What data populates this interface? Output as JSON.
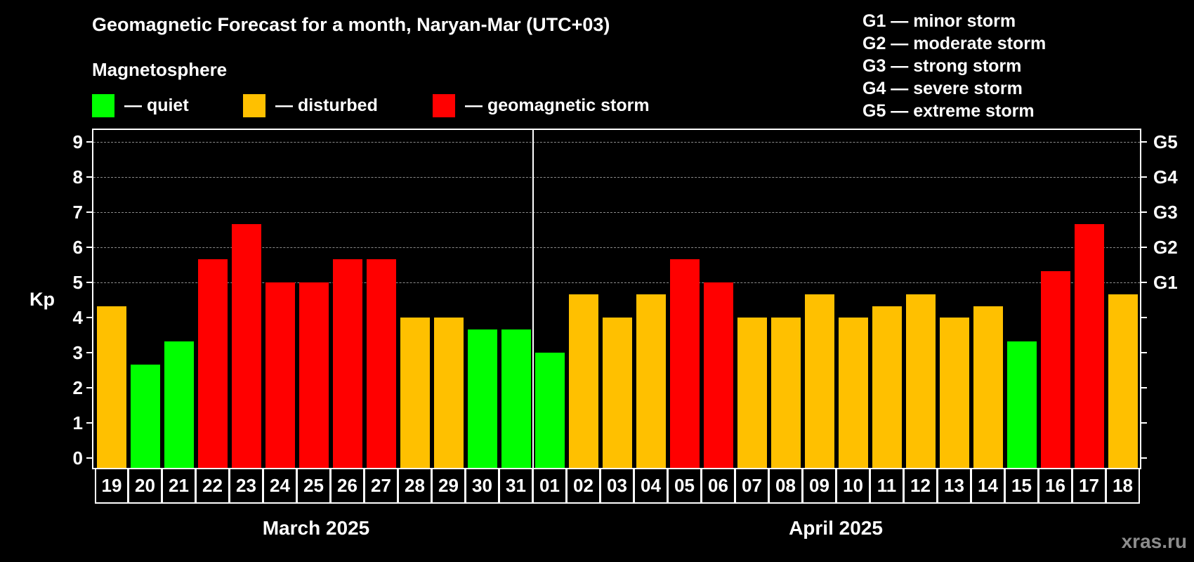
{
  "header": {
    "title": "Geomagnetic Forecast for a month, Naryan-Mar (UTC+03)",
    "subtitle": "Magnetosphere"
  },
  "legend": [
    {
      "label": "— quiet",
      "color": "#00ff00"
    },
    {
      "label": "— disturbed",
      "color": "#ffc000"
    },
    {
      "label": "— geomagnetic storm",
      "color": "#ff0000"
    }
  ],
  "g_scale_legend": [
    "G1 — minor storm",
    "G2 — moderate storm",
    "G3 — strong storm",
    "G4 — severe storm",
    "G5 — extreme storm"
  ],
  "axis": {
    "y_label": "Kp",
    "y_ticks": [
      "0",
      "1",
      "2",
      "3",
      "4",
      "5",
      "6",
      "7",
      "8",
      "9"
    ],
    "g_ticks": [
      {
        "label": "G1",
        "kp": 5
      },
      {
        "label": "G2",
        "kp": 6
      },
      {
        "label": "G3",
        "kp": 7
      },
      {
        "label": "G4",
        "kp": 8
      },
      {
        "label": "G5",
        "kp": 9
      }
    ],
    "months": [
      "March 2025",
      "April 2025"
    ]
  },
  "watermark": "xras.ru",
  "colors": {
    "quiet": "#00ff00",
    "disturbed": "#ffc000",
    "storm": "#ff0000"
  },
  "chart_data": {
    "type": "bar",
    "title": "Geomagnetic Forecast for a month, Naryan-Mar (UTC+03)",
    "xlabel": "",
    "ylabel": "Kp",
    "ylim": [
      0,
      9
    ],
    "grid": true,
    "legend_position": "top",
    "secondary_axis": {
      "G1": 5,
      "G2": 6,
      "G3": 7,
      "G4": 8,
      "G5": 9
    },
    "categories": [
      "19",
      "20",
      "21",
      "22",
      "23",
      "24",
      "25",
      "26",
      "27",
      "28",
      "29",
      "30",
      "31",
      "01",
      "02",
      "03",
      "04",
      "05",
      "06",
      "07",
      "08",
      "09",
      "10",
      "11",
      "12",
      "13",
      "14",
      "15",
      "16",
      "17",
      "18"
    ],
    "month_groups": [
      {
        "label": "March 2025",
        "from": "19",
        "to": "31"
      },
      {
        "label": "April 2025",
        "from": "01",
        "to": "18"
      }
    ],
    "values": [
      4.33,
      2.67,
      3.33,
      5.67,
      6.67,
      5.0,
      5.0,
      5.67,
      5.67,
      4.0,
      4.0,
      3.67,
      3.67,
      3.0,
      4.67,
      4.0,
      4.67,
      5.67,
      5.0,
      4.0,
      4.0,
      4.67,
      4.0,
      4.33,
      4.67,
      4.0,
      4.33,
      3.33,
      5.33,
      6.67,
      4.67
    ],
    "status": [
      "disturbed",
      "quiet",
      "quiet",
      "storm",
      "storm",
      "storm",
      "storm",
      "storm",
      "storm",
      "disturbed",
      "disturbed",
      "quiet",
      "quiet",
      "quiet",
      "disturbed",
      "disturbed",
      "disturbed",
      "storm",
      "storm",
      "disturbed",
      "disturbed",
      "disturbed",
      "disturbed",
      "disturbed",
      "disturbed",
      "disturbed",
      "disturbed",
      "quiet",
      "storm",
      "storm",
      "disturbed"
    ]
  }
}
